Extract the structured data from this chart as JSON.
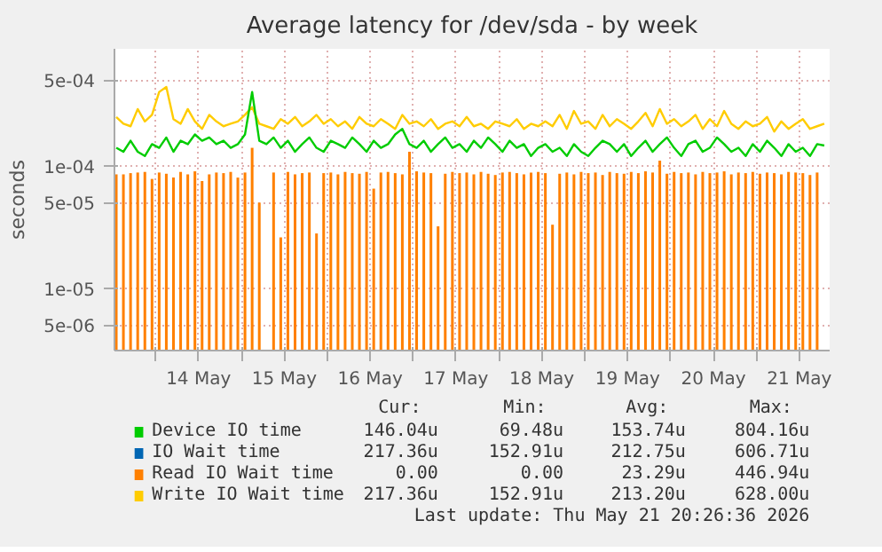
{
  "chart_data": {
    "type": "line",
    "title": "Average latency for /dev/sda - by week",
    "ylabel": "seconds",
    "log": "y",
    "grid": true,
    "legend": "bottom",
    "xlim": [
      "2026-05-13T12:30",
      "2026-05-21T20:30"
    ],
    "ylim": [
      3.1e-06,
      0.0009
    ],
    "yticks": [
      {
        "value": 5e-06,
        "label": "5e-06"
      },
      {
        "value": 1e-05,
        "label": "1e-05"
      },
      {
        "value": 5e-05,
        "label": "5e-05"
      },
      {
        "value": 0.0001,
        "label": "1e-04"
      },
      {
        "value": 0.0005,
        "label": "5e-04"
      }
    ],
    "xticks": [
      {
        "value": "2026-05-14T00:00",
        "label": null
      },
      {
        "value": "2026-05-14T12:00",
        "label": "14 May"
      },
      {
        "value": "2026-05-15T00:00",
        "label": null
      },
      {
        "value": "2026-05-15T12:00",
        "label": "15 May"
      },
      {
        "value": "2026-05-16T00:00",
        "label": null
      },
      {
        "value": "2026-05-16T12:00",
        "label": "16 May"
      },
      {
        "value": "2026-05-17T00:00",
        "label": null
      },
      {
        "value": "2026-05-17T12:00",
        "label": "17 May"
      },
      {
        "value": "2026-05-18T00:00",
        "label": null
      },
      {
        "value": "2026-05-18T12:00",
        "label": "18 May"
      },
      {
        "value": "2026-05-19T00:00",
        "label": null
      },
      {
        "value": "2026-05-19T12:00",
        "label": "19 May"
      },
      {
        "value": "2026-05-20T00:00",
        "label": null
      },
      {
        "value": "2026-05-20T12:00",
        "label": "20 May"
      },
      {
        "value": "2026-05-21T00:00",
        "label": null
      },
      {
        "value": "2026-05-21T12:00",
        "label": "21 May"
      }
    ],
    "x": [
      "2026-05-13T13:00",
      "2026-05-13T15:00",
      "2026-05-13T17:00",
      "2026-05-13T19:00",
      "2026-05-13T21:00",
      "2026-05-13T23:00",
      "2026-05-14T01:00",
      "2026-05-14T03:00",
      "2026-05-14T05:00",
      "2026-05-14T07:00",
      "2026-05-14T09:00",
      "2026-05-14T11:00",
      "2026-05-14T13:00",
      "2026-05-14T15:00",
      "2026-05-14T17:00",
      "2026-05-14T19:00",
      "2026-05-14T21:00",
      "2026-05-14T23:00",
      "2026-05-15T01:00",
      "2026-05-15T03:00",
      "2026-05-15T05:00",
      "2026-05-15T07:00",
      "2026-05-15T09:00",
      "2026-05-15T11:00",
      "2026-05-15T13:00",
      "2026-05-15T15:00",
      "2026-05-15T17:00",
      "2026-05-15T19:00",
      "2026-05-15T21:00",
      "2026-05-15T23:00",
      "2026-05-16T01:00",
      "2026-05-16T03:00",
      "2026-05-16T05:00",
      "2026-05-16T07:00",
      "2026-05-16T09:00",
      "2026-05-16T11:00",
      "2026-05-16T13:00",
      "2026-05-16T15:00",
      "2026-05-16T17:00",
      "2026-05-16T19:00",
      "2026-05-16T21:00",
      "2026-05-16T23:00",
      "2026-05-17T01:00",
      "2026-05-17T03:00",
      "2026-05-17T05:00",
      "2026-05-17T07:00",
      "2026-05-17T09:00",
      "2026-05-17T11:00",
      "2026-05-17T13:00",
      "2026-05-17T15:00",
      "2026-05-17T17:00",
      "2026-05-17T19:00",
      "2026-05-17T21:00",
      "2026-05-17T23:00",
      "2026-05-18T01:00",
      "2026-05-18T03:00",
      "2026-05-18T05:00",
      "2026-05-18T07:00",
      "2026-05-18T09:00",
      "2026-05-18T11:00",
      "2026-05-18T13:00",
      "2026-05-18T15:00",
      "2026-05-18T17:00",
      "2026-05-18T19:00",
      "2026-05-18T21:00",
      "2026-05-18T23:00",
      "2026-05-19T01:00",
      "2026-05-19T03:00",
      "2026-05-19T05:00",
      "2026-05-19T07:00",
      "2026-05-19T09:00",
      "2026-05-19T11:00",
      "2026-05-19T13:00",
      "2026-05-19T15:00",
      "2026-05-19T17:00",
      "2026-05-19T19:00",
      "2026-05-19T21:00",
      "2026-05-19T23:00",
      "2026-05-20T01:00",
      "2026-05-20T03:00",
      "2026-05-20T05:00",
      "2026-05-20T07:00",
      "2026-05-20T09:00",
      "2026-05-20T11:00",
      "2026-05-20T13:00",
      "2026-05-20T15:00",
      "2026-05-20T17:00",
      "2026-05-20T19:00",
      "2026-05-20T21:00",
      "2026-05-20T23:00",
      "2026-05-21T01:00",
      "2026-05-21T03:00",
      "2026-05-21T05:00",
      "2026-05-21T07:00",
      "2026-05-21T09:00",
      "2026-05-21T11:00",
      "2026-05-21T13:00",
      "2026-05-21T15:00",
      "2026-05-21T17:00",
      "2026-05-21T19:00"
    ],
    "series": [
      {
        "name": "Device IO time",
        "color": "#00cc00",
        "values": [
          0.00014,
          0.00013,
          0.00016,
          0.00013,
          0.00012,
          0.00015,
          0.00014,
          0.00017,
          0.00013,
          0.00016,
          0.00015,
          0.00018,
          0.00016,
          0.00017,
          0.00015,
          0.00016,
          0.00014,
          0.00015,
          0.00018,
          0.0004,
          0.00016,
          0.00015,
          0.00017,
          0.00014,
          0.00016,
          0.00013,
          0.00015,
          0.00017,
          0.00014,
          0.00013,
          0.00016,
          0.00015,
          0.00014,
          0.00017,
          0.00015,
          0.00013,
          0.00016,
          0.00014,
          0.00015,
          0.00018,
          0.0002,
          0.00015,
          0.00014,
          0.00016,
          0.00013,
          0.00015,
          0.00017,
          0.00014,
          0.00015,
          0.00013,
          0.00016,
          0.00014,
          0.00017,
          0.00015,
          0.00013,
          0.00016,
          0.00014,
          0.00015,
          0.00012,
          0.00014,
          0.00015,
          0.00013,
          0.00014,
          0.00012,
          0.00015,
          0.00013,
          0.00012,
          0.00014,
          0.00016,
          0.00015,
          0.00013,
          0.00015,
          0.00012,
          0.00014,
          0.00016,
          0.00013,
          0.00015,
          0.00017,
          0.00014,
          0.00012,
          0.00015,
          0.00016,
          0.00013,
          0.00014,
          0.00017,
          0.00015,
          0.00013,
          0.00014,
          0.00012,
          0.00015,
          0.00013,
          0.00016,
          0.00014,
          0.00012,
          0.00015,
          0.00013,
          0.00014,
          0.00012,
          0.00015,
          0.000146
        ]
      },
      {
        "name": "IO Wait time",
        "color": "#0066b3",
        "values": [
          null,
          null,
          null,
          null,
          null,
          null,
          null,
          null,
          null,
          null,
          null,
          null,
          null,
          null,
          null,
          null,
          null,
          null,
          null,
          null,
          null,
          null,
          null,
          null,
          null,
          null,
          null,
          null,
          null,
          null,
          null,
          null,
          null,
          null,
          null,
          null,
          null,
          null,
          null,
          null,
          null,
          null,
          null,
          null,
          null,
          null,
          null,
          null,
          null,
          null,
          null,
          null,
          null,
          null,
          null,
          null,
          null,
          null,
          null,
          null,
          null,
          null,
          null,
          null,
          null,
          null,
          null,
          null,
          null,
          null,
          null,
          null,
          null,
          null,
          null,
          null,
          null,
          null,
          null,
          null,
          null,
          null,
          null,
          null,
          null,
          null,
          null,
          null,
          null,
          null,
          null,
          null,
          null,
          null,
          null,
          null,
          null,
          null,
          null,
          null
        ]
      },
      {
        "name": "Read IO Wait time",
        "type": "bar",
        "color": "#ff8000",
        "values": [
          8.5e-05,
          8.5e-05,
          8.7e-05,
          8.8e-05,
          8.9e-05,
          7.8e-05,
          8.8e-05,
          8.6e-05,
          8e-05,
          8.9e-05,
          8.5e-05,
          9e-05,
          7.5e-05,
          8.5e-05,
          8.8e-05,
          8.7e-05,
          8.9e-05,
          8e-05,
          8.8e-05,
          0.00014,
          5e-05,
          null,
          8.8e-05,
          2.6e-05,
          8.9e-05,
          8.5e-05,
          8.7e-05,
          8.8e-05,
          2.8e-05,
          8.7e-05,
          8.8e-05,
          8.5e-05,
          8.9e-05,
          8.7e-05,
          8.6e-05,
          8.9e-05,
          6.5e-05,
          8.8e-05,
          8.9e-05,
          8.7e-05,
          8.5e-05,
          0.00013,
          9e-05,
          8.8e-05,
          8.7e-05,
          3.2e-05,
          8.6e-05,
          8.9e-05,
          8.7e-05,
          8.8e-05,
          8.5e-05,
          8.9e-05,
          8.6e-05,
          8.4e-05,
          8.8e-05,
          8.9e-05,
          8.7e-05,
          8.5e-05,
          8.8e-05,
          8.9e-05,
          8.7e-05,
          3.3e-05,
          8.6e-05,
          8.8e-05,
          8.5e-05,
          8.9e-05,
          8.7e-05,
          8.8e-05,
          8.4e-05,
          8.9e-05,
          8.7e-05,
          8.6e-05,
          8.9e-05,
          8.7e-05,
          9e-05,
          8.8e-05,
          0.00011,
          8.6e-05,
          8.9e-05,
          8.7e-05,
          8.8e-05,
          8.5e-05,
          8.9e-05,
          8.7e-05,
          8.8e-05,
          9e-05,
          8.5e-05,
          8.8e-05,
          8.7e-05,
          8.9e-05,
          8.6e-05,
          8.8e-05,
          8.7e-05,
          8.5e-05,
          8.9e-05,
          8.8e-05,
          8.7e-05,
          8.4e-05,
          8.8e-05,
          null
        ]
      },
      {
        "name": "Write IO Wait time",
        "color": "#ffcc00",
        "values": [
          0.00025,
          0.00022,
          0.00021,
          0.00029,
          0.00023,
          0.00026,
          0.0004,
          0.00044,
          0.00024,
          0.00022,
          0.00029,
          0.00023,
          0.0002,
          0.00026,
          0.00023,
          0.00021,
          0.00022,
          0.00023,
          0.00026,
          0.0003,
          0.00022,
          0.00021,
          0.0002,
          0.00024,
          0.00022,
          0.00025,
          0.00021,
          0.00023,
          0.00026,
          0.00022,
          0.00024,
          0.00021,
          0.00023,
          0.0002,
          0.00025,
          0.00022,
          0.00021,
          0.00024,
          0.00022,
          0.0002,
          0.00026,
          0.00022,
          0.00023,
          0.00021,
          0.00024,
          0.0002,
          0.00022,
          0.00023,
          0.00021,
          0.00025,
          0.00021,
          0.00022,
          0.0002,
          0.00023,
          0.00022,
          0.00021,
          0.00024,
          0.0002,
          0.00022,
          0.00021,
          0.00023,
          0.00021,
          0.00026,
          0.0002,
          0.00028,
          0.00022,
          0.00023,
          0.0002,
          0.00026,
          0.00021,
          0.00024,
          0.00022,
          0.0002,
          0.00023,
          0.00027,
          0.00021,
          0.00029,
          0.00022,
          0.00024,
          0.00021,
          0.00023,
          0.00026,
          0.0002,
          0.00024,
          0.00021,
          0.00028,
          0.00022,
          0.0002,
          0.00023,
          0.00021,
          0.00022,
          0.00025,
          0.00019,
          0.00023,
          0.0002,
          0.00022,
          0.00024,
          0.0002,
          0.00021,
          0.00022
        ]
      }
    ],
    "annotations": [
      "Cur:",
      "Min:",
      "Avg:",
      "Max:",
      "146.04u",
      "69.48u",
      "153.74u",
      "804.16u",
      "217.36u",
      "152.91u",
      "212.75u",
      "606.71u",
      "0.00",
      "0.00",
      "23.29u",
      "446.94u",
      "217.36u",
      "152.91u",
      "213.20u",
      "628.00u",
      "Last update: Thu May 21 20:26:36 2026"
    ]
  }
}
